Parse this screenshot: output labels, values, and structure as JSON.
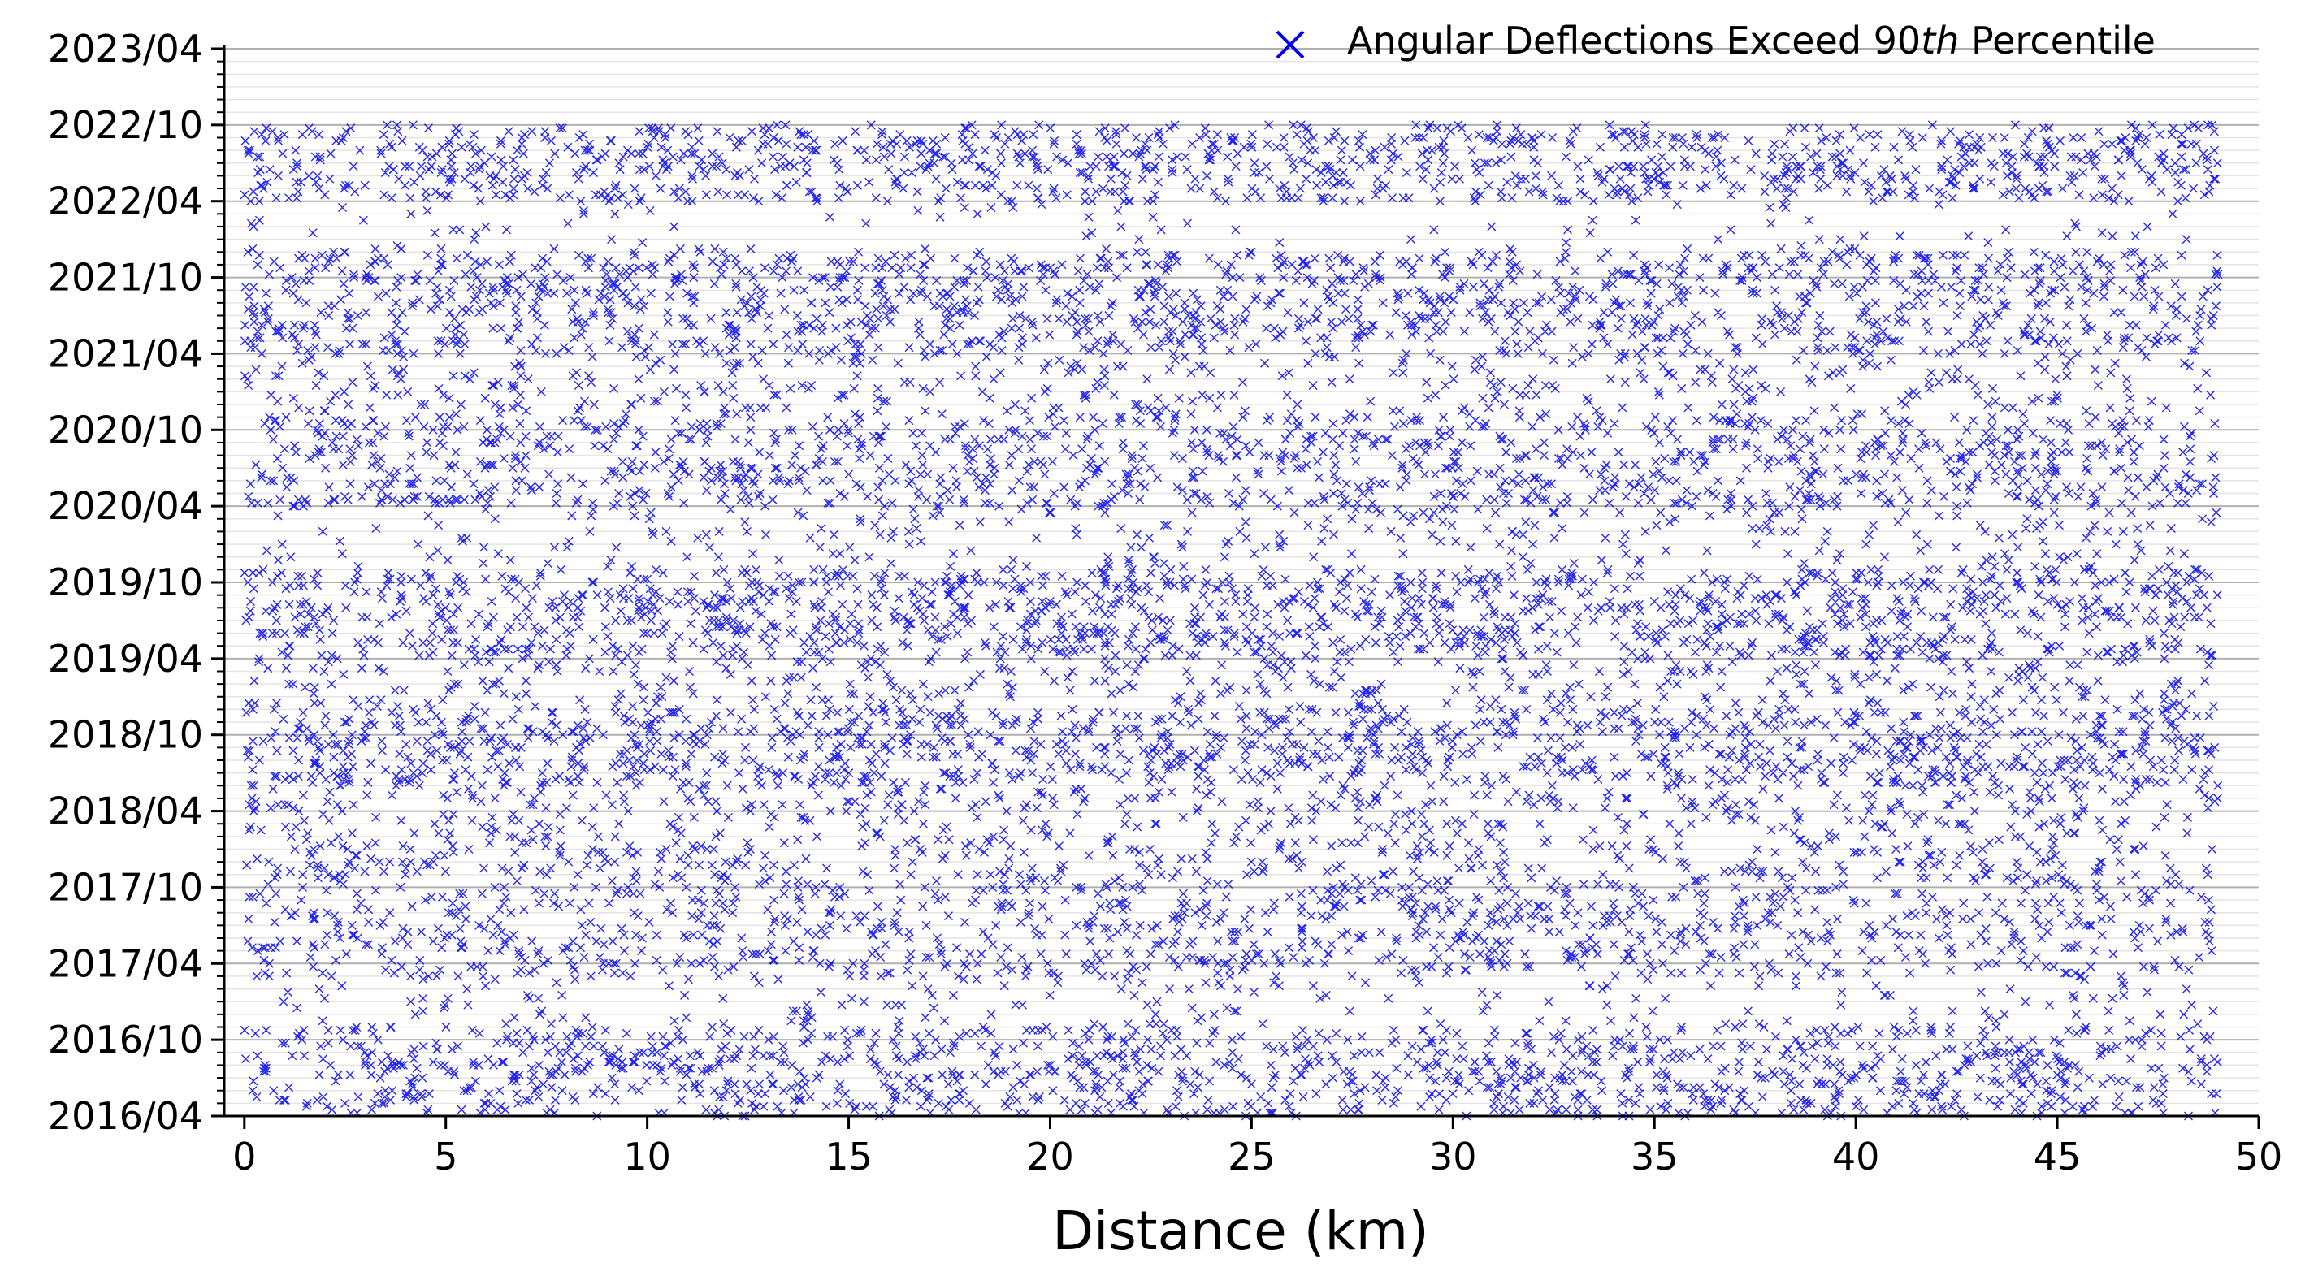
{
  "chart_data": {
    "type": "scatter",
    "title": "",
    "xlabel": "Distance (km)",
    "ylabel": "",
    "xlim": [
      -0.5,
      50
    ],
    "x_ticks": [
      0,
      5,
      10,
      15,
      20,
      25,
      30,
      35,
      40,
      45,
      50
    ],
    "x_tick_labels": [
      "0",
      "5",
      "10",
      "15",
      "20",
      "25",
      "30",
      "35",
      "40",
      "45",
      "50"
    ],
    "ylim_months_since_2016_04": [
      0,
      84
    ],
    "y_ticks_months": [
      0,
      6,
      12,
      18,
      24,
      30,
      36,
      42,
      48,
      54,
      60,
      66,
      72,
      78,
      84
    ],
    "y_tick_labels": [
      "2016/04",
      "2016/10",
      "2017/04",
      "2017/10",
      "2018/04",
      "2018/10",
      "2019/04",
      "2019/10",
      "2020/04",
      "2020/10",
      "2021/04",
      "2021/10",
      "2022/04",
      "2022/10",
      "2023/04"
    ],
    "grid": {
      "major": true,
      "minor_monthly": true
    },
    "legend": {
      "position": "top-right",
      "marker": "x"
    },
    "series": [
      {
        "name": "Angular Deflections Exceed 90th Percentile",
        "marker": "x",
        "color": "#0000ee",
        "x_range_km": [
          0,
          49
        ],
        "note": "dense point cloud; per-band densities listed below",
        "density_bands": [
          {
            "date_from": "2016/04",
            "date_to": "2016/11",
            "density": 0.85
          },
          {
            "date_from": "2016/11",
            "date_to": "2017/03",
            "density": 0.22
          },
          {
            "date_from": "2017/03",
            "date_to": "2017/12",
            "density": 0.65
          },
          {
            "date_from": "2017/12",
            "date_to": "2018/06",
            "density": 0.5
          },
          {
            "date_from": "2018/06",
            "date_to": "2018/12",
            "density": 0.95
          },
          {
            "date_from": "2018/12",
            "date_to": "2019/04",
            "density": 0.45
          },
          {
            "date_from": "2019/04",
            "date_to": "2019/11",
            "density": 0.95
          },
          {
            "date_from": "2019/11",
            "date_to": "2020/04",
            "density": 0.28
          },
          {
            "date_from": "2020/04",
            "date_to": "2020/11",
            "density": 0.8
          },
          {
            "date_from": "2020/11",
            "date_to": "2021/04",
            "density": 0.4
          },
          {
            "date_from": "2021/04",
            "date_to": "2021/12",
            "density": 0.85
          },
          {
            "date_from": "2021/12",
            "date_to": "2022/04",
            "density": 0.12
          },
          {
            "date_from": "2022/04",
            "date_to": "2022/10",
            "density": 0.9
          }
        ]
      }
    ]
  },
  "legend": {
    "label_prefix": "Angular Deflections Exceed 90",
    "label_superscript": "th",
    "label_suffix": " Percentile"
  },
  "colors": {
    "marker": "#0000ee",
    "axis": "#000000",
    "grid_major": "#b0b0b0",
    "grid_minor": "#e4e4e4"
  }
}
